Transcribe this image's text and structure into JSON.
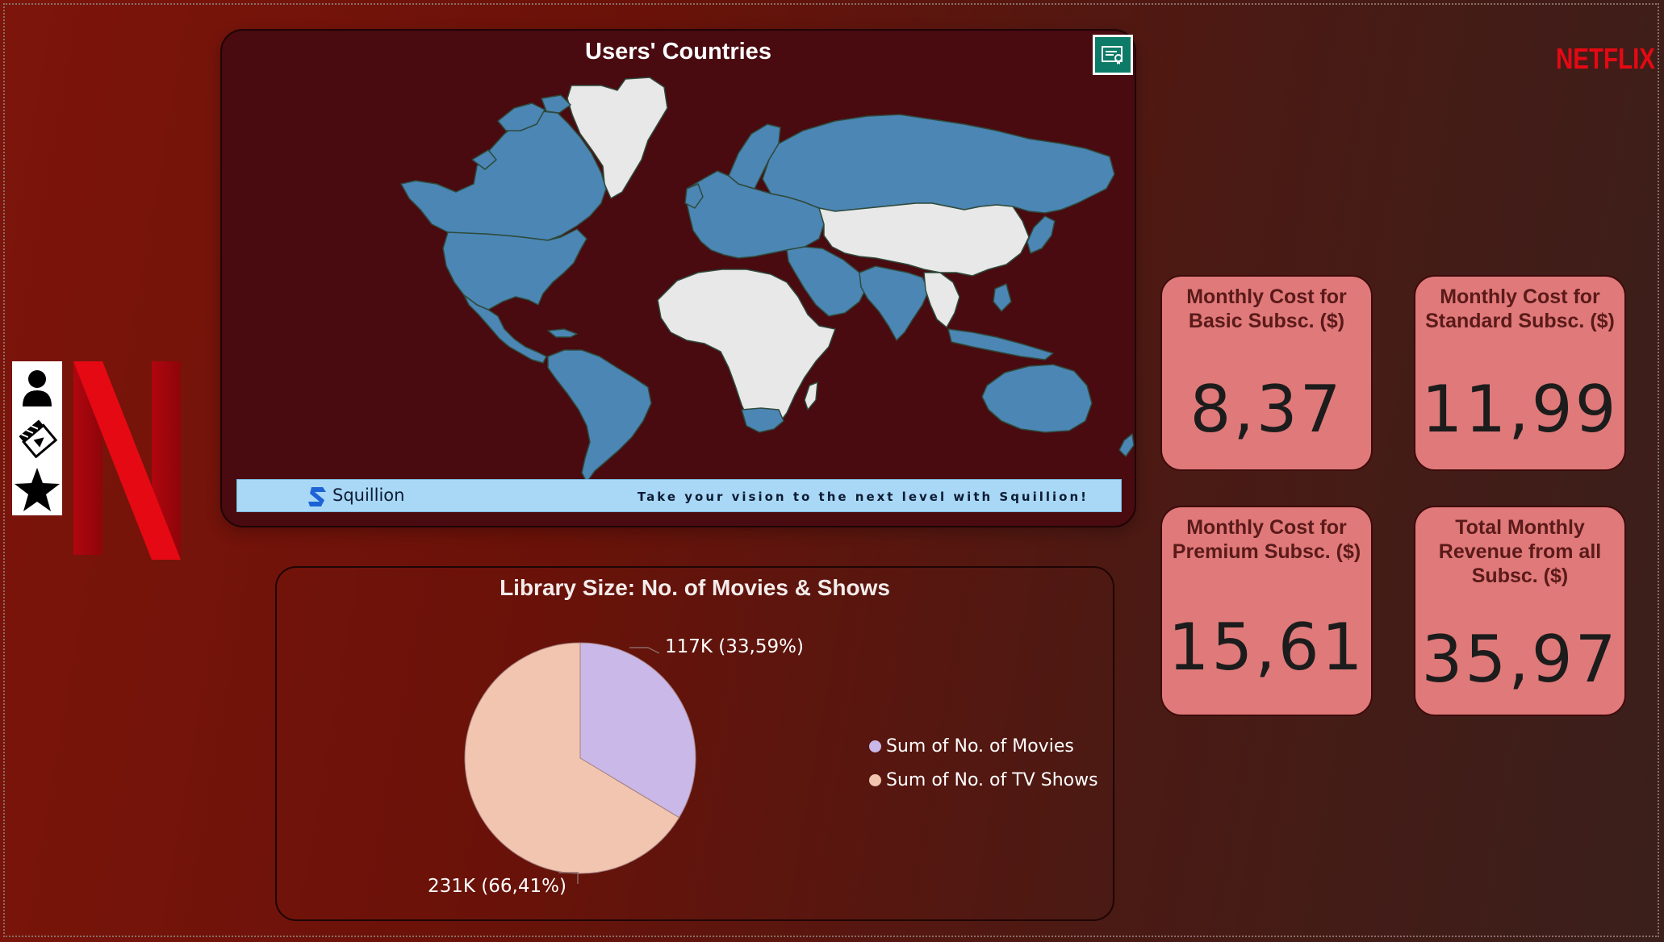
{
  "branding": {
    "logo_icon": "netflix-n-logo",
    "wordmark": "NETFLIX",
    "brand_color": "#e50914"
  },
  "nav": {
    "items": [
      {
        "icon": "person-icon"
      },
      {
        "icon": "clapperboard-icon"
      },
      {
        "icon": "star-icon"
      }
    ]
  },
  "map": {
    "title": "Users' Countries",
    "action_icon": "certificate-icon",
    "highlight_color": "#4b86b4",
    "other_color": "#e8e8e8",
    "banner": {
      "logo_icon": "squillion-logo",
      "name": "Squillion",
      "tagline": "Take your vision to the next level with Squillion!"
    }
  },
  "pie": {
    "title": "Library Size: No. of Movies & Shows",
    "label_movies": "117K (33,59%)",
    "label_shows": "231K (66,41%)",
    "legend": [
      {
        "label": "Sum of No. of Movies",
        "color": "#c9b8e8"
      },
      {
        "label": "Sum of No. of TV Shows",
        "color": "#f2c5b0"
      }
    ]
  },
  "chart_data": {
    "type": "pie",
    "title": "Library Size: No. of Movies & Shows",
    "categories": [
      "Sum of No. of Movies",
      "Sum of No. of TV Shows"
    ],
    "values": [
      117,
      231
    ],
    "percent": [
      33.59,
      66.41
    ],
    "legend_position": "right"
  },
  "kpis": [
    {
      "label": "Monthly Cost for Basic Subsc. ($)",
      "value": "8,37"
    },
    {
      "label": "Monthly Cost for Standard Subsc. ($)",
      "value": "11,99"
    },
    {
      "label": "Monthly Cost for Premium Subsc. ($)",
      "value": "15,61"
    },
    {
      "label": "Total Monthly Revenue from all Subsc. ($)",
      "value": "35,97"
    }
  ]
}
